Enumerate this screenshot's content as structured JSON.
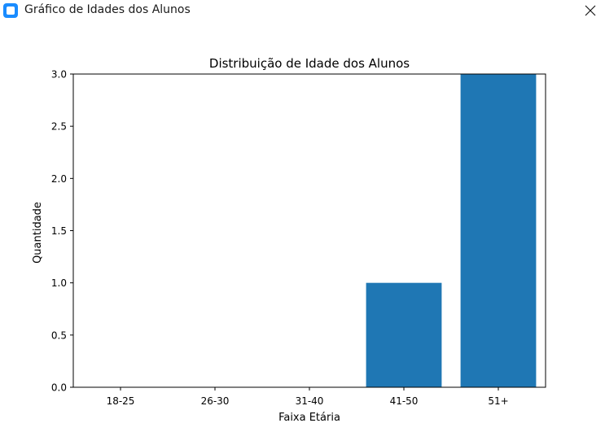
{
  "window": {
    "title": "Gráfico de Idades dos Alunos",
    "close_icon": "close-icon"
  },
  "chart_data": {
    "type": "bar",
    "title": "Distribuição de Idade dos Alunos",
    "xlabel": "Faixa Etária",
    "ylabel": "Quantidade",
    "categories": [
      "18-25",
      "26-30",
      "31-40",
      "41-50",
      "51+"
    ],
    "values": [
      0,
      0,
      0,
      1,
      3
    ],
    "ylim": [
      0,
      3.0
    ],
    "yticks": [
      "0.0",
      "0.5",
      "1.0",
      "1.5",
      "2.0",
      "2.5",
      "3.0"
    ],
    "ytick_values": [
      0,
      0.5,
      1.0,
      1.5,
      2.0,
      2.5,
      3.0
    ],
    "bar_color": "#1f77b4",
    "grid": false
  }
}
